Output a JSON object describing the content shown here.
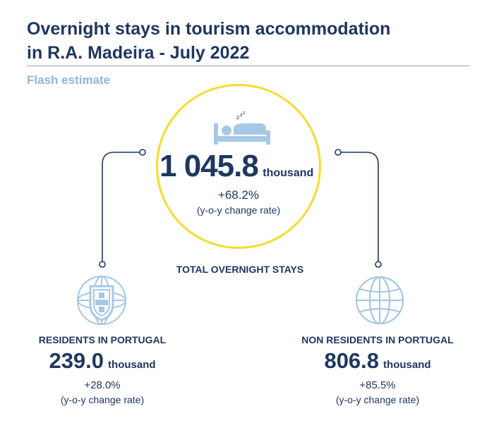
{
  "header": {
    "title_line1": "Overnight stays in tourism accommodation",
    "title_line2": "in R.A. Madeira - July 2022",
    "subtitle": "Flash estimate"
  },
  "total": {
    "value": "1 045.8",
    "unit": "thousand",
    "rate": "+68.2%",
    "note": "(y-o-y change rate)",
    "label": "TOTAL OVERNIGHT STAYS",
    "icon": "bed-icon"
  },
  "residents": {
    "label": "RESIDENTS IN PORTUGAL",
    "value": "239.0",
    "unit": "thousand",
    "rate": "+28.0%",
    "note": "(y-o-y change rate)",
    "icon": "portugal-shield-icon"
  },
  "non_residents": {
    "label": "NON RESIDENTS IN PORTUGAL",
    "value": "806.8",
    "unit": "thousand",
    "rate": "+85.5%",
    "note": "(y-o-y change rate)",
    "icon": "globe-icon"
  },
  "colors": {
    "navy": "#1f3760",
    "light_blue": "#8fb6d9",
    "icon_blue": "#a6c8e6",
    "circle_yellow": "#f6dc2e"
  }
}
